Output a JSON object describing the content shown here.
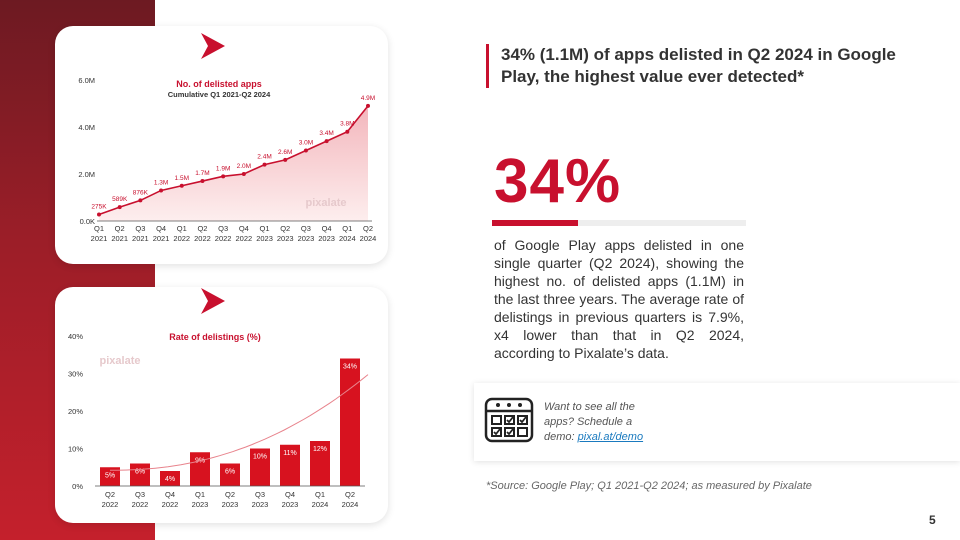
{
  "headline": "34% (1.1M) of apps delisted in Q2 2024 in Google Play,  the highest value ever detected*",
  "big_stat": {
    "value_text": "34%",
    "value": 0.34
  },
  "description": "of Google Play apps delisted in one single quarter (Q2 2024), showing the highest no. of delisted apps (1.1M) in the last three years. The average rate of delistings in previous quarters is 7.9%, x4 lower than that in Q2 2024, according to Pixalate’s data.",
  "cta": {
    "text": "Want to see all the apps? Schedule a demo: ",
    "link_text": "pixal.at/demo",
    "icon": "calendar-checklist-icon"
  },
  "source": "*Source: Google Play; Q1 2021-Q2 2024; as measured by Pixalate",
  "page_number": "5",
  "watermark": "pixalate",
  "colors": {
    "accent": "#c8102e",
    "band_top": "#6d1a22",
    "band_bottom": "#c4202c",
    "area_fill": "#f8d7da"
  },
  "chart_data": [
    {
      "type": "area",
      "title": "No. of delisted apps",
      "subtitle": "Cumulative Q1 2021-Q2 2024",
      "categories": [
        "Q1\n2021",
        "Q2\n2021",
        "Q3\n2021",
        "Q4\n2021",
        "Q1\n2022",
        "Q2\n2022",
        "Q3\n2022",
        "Q4\n2022",
        "Q1\n2023",
        "Q2\n2023",
        "Q3\n2023",
        "Q4\n2023",
        "Q1\n2024",
        "Q2\n2024"
      ],
      "values": [
        0.275,
        0.589,
        0.876,
        1.3,
        1.5,
        1.7,
        1.9,
        2.0,
        2.4,
        2.6,
        3.0,
        3.4,
        3.8,
        4.9
      ],
      "data_labels": [
        "275K",
        "589K",
        "876K",
        "1.3M",
        "1.5M",
        "1.7M",
        "1.9M",
        "2.0M",
        "2.4M",
        "2.6M",
        "3.0M",
        "3.4M",
        "3.8M",
        "4.9M"
      ],
      "ylim": [
        0,
        6
      ],
      "yticks": [
        "0.0K",
        "2.0M",
        "4.0M",
        "6.0M"
      ],
      "ytick_values": [
        0,
        2,
        4,
        6
      ]
    },
    {
      "type": "bar",
      "title": "Rate of delistings (%)",
      "categories": [
        "Q2\n2022",
        "Q3\n2022",
        "Q4\n2022",
        "Q1\n2023",
        "Q2\n2023",
        "Q3\n2023",
        "Q4\n2023",
        "Q1\n2024",
        "Q2\n2024"
      ],
      "values": [
        5,
        6,
        4,
        9,
        6,
        10,
        11,
        12,
        34
      ],
      "data_labels": [
        "5%",
        "6%",
        "4%",
        "9%",
        "6%",
        "10%",
        "11%",
        "12%",
        "34%"
      ],
      "ylim": [
        0,
        40
      ],
      "yticks": [
        "0%",
        "10%",
        "20%",
        "30%",
        "40%"
      ],
      "ytick_values": [
        0,
        10,
        20,
        30,
        40
      ],
      "trendline": true
    }
  ]
}
